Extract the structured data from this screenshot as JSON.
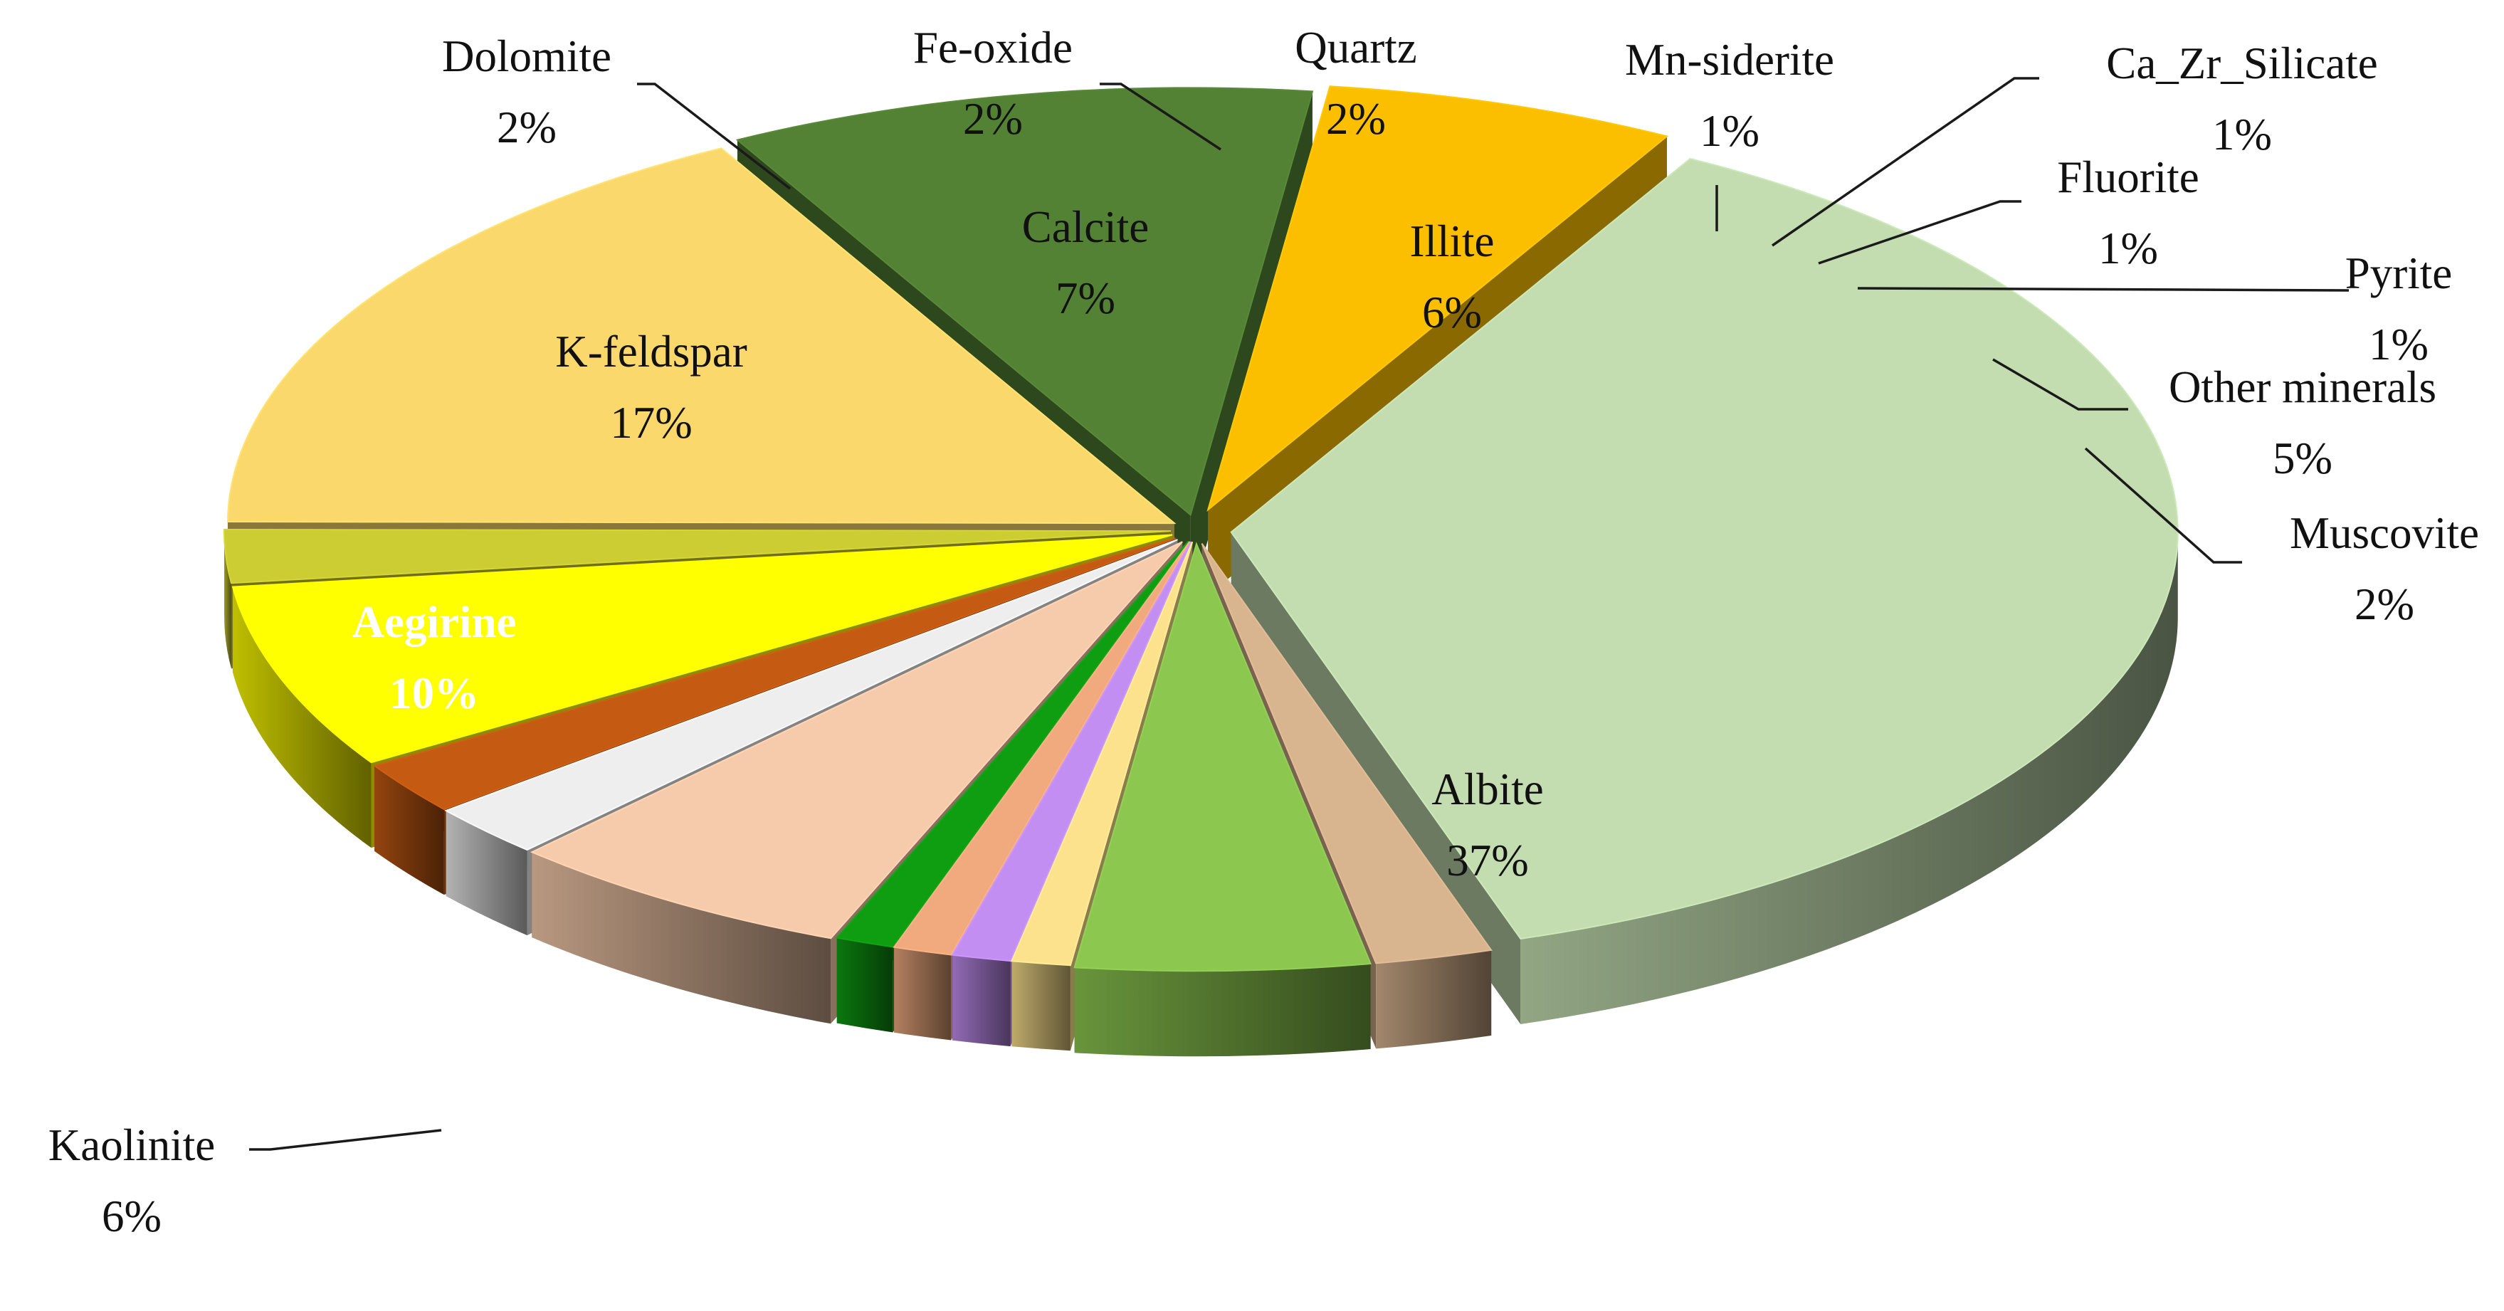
{
  "chart_data": {
    "type": "pie",
    "variant": "3d-exploded",
    "title": "",
    "slices": [
      {
        "name": "Albite",
        "label": "Albite",
        "value_label": "37%",
        "value": 37,
        "color": "#c3ddb0"
      },
      {
        "name": "Muscovite",
        "label": "Muscovite",
        "value_label": "2%",
        "value": 2,
        "color": "#d8b48f"
      },
      {
        "name": "Other minerals",
        "label": "Other minerals",
        "value_label": "5%",
        "value": 5,
        "color": "#8cc750"
      },
      {
        "name": "Pyrite",
        "label": "Pyrite",
        "value_label": "1%",
        "value": 1,
        "color": "#fde28e"
      },
      {
        "name": "Fluorite",
        "label": "Fluorite",
        "value_label": "1%",
        "value": 1,
        "color": "#c38ef2"
      },
      {
        "name": "Ca_Zr_Silicate",
        "label": "Ca_Zr_Silicate",
        "value_label": "1%",
        "value": 1,
        "color": "#f0aa7e"
      },
      {
        "name": "Mn-siderite",
        "label": "Mn-siderite",
        "value_label": "1%",
        "value": 1,
        "color": "#0f9e12"
      },
      {
        "name": "Illite",
        "label": "Illite",
        "value_label": "6%",
        "value": 6,
        "color": "#f6cbab"
      },
      {
        "name": "Quartz",
        "label": "Quartz",
        "value_label": "2%",
        "value": 2,
        "color": "#eeeeee"
      },
      {
        "name": "Fe-oxide",
        "label": "Fe-oxide",
        "value_label": "2%",
        "value": 2,
        "color": "#c55a12"
      },
      {
        "name": "Calcite",
        "label": "Calcite",
        "value_label": "7%",
        "value": 7,
        "color": "#ffff00"
      },
      {
        "name": "Dolomite",
        "label": "Dolomite",
        "value_label": "2%",
        "value": 2,
        "color": "#cccc33"
      },
      {
        "name": "K-feldspar",
        "label": "K-feldspar",
        "value_label": "17%",
        "value": 17,
        "color": "#fbd86c"
      },
      {
        "name": "Aegirine",
        "label": "Aegirine",
        "value_label": "10%",
        "value": 10,
        "color": "#548235"
      },
      {
        "name": "Kaolinite",
        "label": "Kaolinite",
        "value_label": "6%",
        "value": 6,
        "color": "#fbbf00"
      }
    ]
  }
}
